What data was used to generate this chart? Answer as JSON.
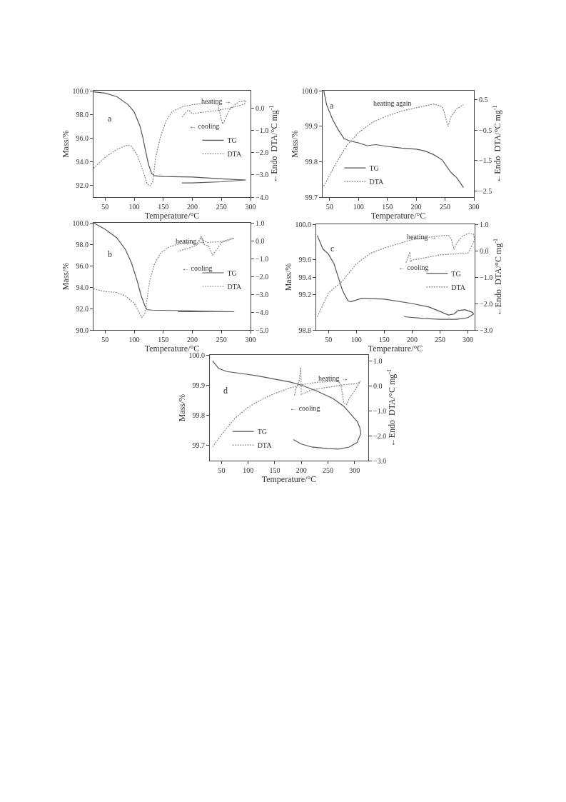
{
  "chart_data": [
    {
      "type": "line",
      "xlabel": "Temperature/°C",
      "ylabel": "Mass/%",
      "y2label": "←Endo  DTA/°C mg$^{-1}$",
      "legend": "right",
      "xlim": [
        30,
        300
      ],
      "xticks": [
        50,
        100,
        150,
        200,
        250,
        300
      ],
      "ylim": [
        91.0,
        100.0
      ],
      "yticks": [
        {
          "value": 92,
          "label": "92.0"
        },
        {
          "value": 94,
          "label": "94.0"
        },
        {
          "value": 96,
          "label": "96.0"
        },
        {
          "value": 98,
          "label": "98.0"
        },
        {
          "value": 100,
          "label": "100.0"
        }
      ],
      "y2lim": [
        -4.0,
        0.8
      ],
      "y2ticks": [
        {
          "value": -4,
          "label": "−4.0"
        },
        {
          "value": -3,
          "label": "−3.0"
        },
        {
          "value": -2,
          "label": "−2.0"
        },
        {
          "value": -1,
          "label": "−1.0"
        },
        {
          "value": 0,
          "label": "0.0"
        }
      ],
      "annotations": [
        "a",
        "heating →",
        "← cooling"
      ],
      "series": [
        {
          "name": "TG",
          "color": "#555555",
          "line_style": "solid",
          "x": [
            30,
            50,
            70,
            90,
            100,
            110,
            115,
            120,
            125,
            130,
            135,
            150,
            200,
            250,
            292,
            250,
            200,
            182
          ],
          "values": [
            99.9,
            99.8,
            99.5,
            98.8,
            98.2,
            97.0,
            96.0,
            94.8,
            93.7,
            93.0,
            92.8,
            92.75,
            92.7,
            92.55,
            92.45,
            92.3,
            92.2,
            92.2
          ]
        },
        {
          "name": "DTA",
          "color": "#888888",
          "line_style": "dotted",
          "axis": "y2",
          "x": [
            30,
            50,
            70,
            88,
            95,
            105,
            115,
            122,
            127,
            132,
            137,
            145,
            155,
            165,
            185,
            210,
            230,
            244,
            248,
            252,
            256,
            265,
            280,
            292,
            290,
            270,
            240,
            210,
            200,
            195,
            192,
            185,
            182
          ],
          "values": [
            -2.7,
            -2.2,
            -1.85,
            -1.65,
            -1.7,
            -2.1,
            -2.8,
            -3.4,
            -3.5,
            -3.3,
            -2.2,
            -1.3,
            -0.55,
            -0.15,
            0.1,
            0.2,
            0.25,
            0.2,
            -0.3,
            -0.7,
            -0.5,
            0.0,
            0.3,
            0.35,
            0.2,
            0.05,
            -0.1,
            -0.2,
            -0.25,
            -0.1,
            -0.1,
            -0.3,
            -0.4
          ]
        }
      ]
    },
    {
      "type": "line",
      "xlabel": "Temperature/°C",
      "ylabel": "Mass/%",
      "y2label": "←Endo  DTA/°C mg$^{-1}$",
      "legend": "bottom left",
      "xlim": [
        38,
        300
      ],
      "xticks": [
        50,
        100,
        150,
        200,
        250,
        300
      ],
      "ylim": [
        99.7,
        100.0
      ],
      "yticks": [
        {
          "value": 99.7,
          "label": "99.7"
        },
        {
          "value": 99.8,
          "label": "99.8"
        },
        {
          "value": 99.9,
          "label": "99.9"
        },
        {
          "value": 100.0,
          "label": "100.0"
        }
      ],
      "y2lim": [
        -2.7,
        0.8
      ],
      "y2ticks": [
        {
          "value": -2.5,
          "label": "−2.5"
        },
        {
          "value": -1.5,
          "label": "−1.5"
        },
        {
          "value": -0.5,
          "label": "−0.5"
        },
        {
          "value": 0.5,
          "label": "0.5"
        }
      ],
      "annotations": [
        "a",
        "heating again"
      ],
      "series": [
        {
          "name": "TG",
          "color": "#555555",
          "line_style": "solid",
          "x": [
            40,
            45,
            55,
            65,
            75,
            85,
            100,
            115,
            130,
            150,
            175,
            200,
            215,
            230,
            245,
            260,
            270,
            282
          ],
          "values": [
            100.0,
            99.96,
            99.92,
            99.89,
            99.865,
            99.858,
            99.853,
            99.845,
            99.848,
            99.843,
            99.838,
            99.835,
            99.83,
            99.82,
            99.805,
            99.77,
            99.755,
            99.727
          ]
        },
        {
          "name": "DTA",
          "color": "#888888",
          "line_style": "dotted",
          "axis": "y2",
          "x": [
            40,
            60,
            80,
            100,
            125,
            150,
            175,
            200,
            230,
            245,
            250,
            255,
            260,
            270,
            282
          ],
          "values": [
            -2.34,
            -1.63,
            -1.0,
            -0.58,
            -0.23,
            -0.03,
            0.13,
            0.24,
            0.36,
            0.28,
            0.0,
            -0.38,
            -0.07,
            0.2,
            0.34
          ]
        }
      ]
    },
    {
      "type": "line",
      "xlabel": "Temperature/°C",
      "ylabel": "Mass/%",
      "legend": "right",
      "xlim": [
        30,
        300
      ],
      "xticks": [
        50,
        100,
        150,
        200,
        250,
        300
      ],
      "ylim": [
        90.0,
        100.0
      ],
      "yticks": [
        {
          "value": 90,
          "label": "90.0"
        },
        {
          "value": 92,
          "label": "92.0"
        },
        {
          "value": 94,
          "label": "94.0"
        },
        {
          "value": 96,
          "label": "96.0"
        },
        {
          "value": 98,
          "label": "98.0"
        },
        {
          "value": 100,
          "label": "100.0"
        }
      ],
      "y2lim": [
        -5.0,
        1.0
      ],
      "y2ticks": [
        {
          "value": -5,
          "label": "−5.0"
        },
        {
          "value": -4,
          "label": "−4.0"
        },
        {
          "value": -3,
          "label": "−3.0"
        },
        {
          "value": -2,
          "label": "−2.0"
        },
        {
          "value": -1,
          "label": "−1.0"
        },
        {
          "value": 0,
          "label": "0.0"
        },
        {
          "value": 1,
          "label": "1.0"
        }
      ],
      "annotations": [
        "b",
        "heating →",
        "← cooling"
      ],
      "series": [
        {
          "name": "TG",
          "color": "#555555",
          "line_style": "solid",
          "x": [
            30,
            50,
            70,
            85,
            95,
            105,
            112,
            118,
            122,
            130,
            180,
            230,
            272,
            230,
            175
          ],
          "values": [
            100.0,
            99.4,
            98.6,
            97.5,
            96.3,
            94.6,
            93.2,
            92.3,
            91.9,
            91.85,
            91.8,
            91.75,
            91.7,
            91.72,
            91.7
          ]
        },
        {
          "name": "DTA",
          "color": "#888888",
          "line_style": "dotted",
          "axis": "y2",
          "x": [
            30,
            50,
            70,
            85,
            100,
            108,
            113,
            118,
            122,
            127,
            135,
            145,
            160,
            180,
            200,
            208,
            215,
            220,
            228,
            235,
            242,
            250,
            260,
            272,
            250,
            225,
            218,
            215,
            210,
            200,
            175
          ],
          "values": [
            -2.7,
            -2.85,
            -2.9,
            -3.1,
            -3.5,
            -4.0,
            -4.3,
            -4.1,
            -3.3,
            -2.2,
            -1.3,
            -0.7,
            -0.35,
            -0.15,
            -0.1,
            -0.15,
            0.2,
            -0.2,
            -0.3,
            -0.8,
            -0.5,
            -0.1,
            0.0,
            0.15,
            -0.05,
            -0.1,
            0.05,
            0.25,
            -0.2,
            -0.35,
            -0.6
          ]
        }
      ]
    },
    {
      "type": "line",
      "xlabel": "Temperature/°C",
      "ylabel": "Mass/%",
      "y2label": "←Endo  DTA/°C mg$^{-1}$",
      "legend": "right",
      "xlim": [
        28,
        312
      ],
      "xticks": [
        50,
        100,
        150,
        200,
        250,
        300
      ],
      "ylim": [
        98.8,
        100.0
      ],
      "yticks": [
        {
          "value": 98.8,
          "label": "98.8"
        },
        {
          "value": 99.2,
          "label": "99.2"
        },
        {
          "value": 99.4,
          "label": "99.4"
        },
        {
          "value": 99.6,
          "label": "99.6"
        },
        {
          "value": 100.0,
          "label": "100.0"
        }
      ],
      "y2lim": [
        -3.0,
        1.0
      ],
      "y2ticks": [
        {
          "value": -3,
          "label": "−3.0"
        },
        {
          "value": -2,
          "label": "−2.0"
        },
        {
          "value": -1,
          "label": "−1.0"
        },
        {
          "value": 0,
          "label": "0.0"
        },
        {
          "value": 1,
          "label": "1.0"
        }
      ],
      "annotations": [
        "c",
        "heating →",
        "← cooling"
      ],
      "series": [
        {
          "name": "TG",
          "color": "#555555",
          "line_style": "solid",
          "x": [
            30,
            40,
            50,
            60,
            70,
            75,
            85,
            90,
            100,
            110,
            150,
            200,
            230,
            250,
            265,
            275,
            282,
            295,
            308,
            310,
            300,
            280,
            250,
            220,
            186
          ],
          "values": [
            99.87,
            99.72,
            99.66,
            99.55,
            99.35,
            99.25,
            99.13,
            99.12,
            99.14,
            99.16,
            99.15,
            99.1,
            99.06,
            99.01,
            98.97,
            98.98,
            99.02,
            99.03,
            99.0,
            98.98,
            98.94,
            98.92,
            98.92,
            98.93,
            98.95
          ]
        },
        {
          "name": "DTA",
          "color": "#888888",
          "line_style": "dotted",
          "axis": "y2",
          "x": [
            30,
            50,
            75,
            100,
            125,
            150,
            200,
            250,
            265,
            270,
            275,
            280,
            290,
            300,
            310,
            312,
            305,
            300,
            250,
            200,
            197,
            196,
            193,
            188
          ],
          "values": [
            -2.5,
            -1.6,
            -1.15,
            -0.5,
            -0.1,
            0.1,
            0.42,
            0.56,
            0.58,
            0.45,
            0.05,
            0.3,
            0.55,
            0.65,
            0.62,
            0.4,
            0.1,
            -0.09,
            -0.16,
            -0.36,
            -0.43,
            -0.05,
            -0.23,
            -0.5
          ]
        }
      ]
    },
    {
      "type": "line",
      "xlabel": "Temperature/°C",
      "ylabel": "Mass/%",
      "y2label": "←Endo  DTA/°C mg$^{-1}$",
      "legend": "bottom left",
      "xlim": [
        28,
        326
      ],
      "xticks": [
        50,
        100,
        150,
        200,
        250,
        300
      ],
      "ylim": [
        99.65,
        100.0
      ],
      "yticks": [
        {
          "value": 99.7,
          "label": "99.7"
        },
        {
          "value": 99.8,
          "label": "99.8"
        },
        {
          "value": 99.9,
          "label": "99.9"
        },
        {
          "value": 100.0,
          "label": "100.0"
        }
      ],
      "y2lim": [
        -3.0,
        1.25
      ],
      "y2ticks": [
        {
          "value": -3,
          "label": "−3.0"
        },
        {
          "value": -2,
          "label": "−2.0"
        },
        {
          "value": -1,
          "label": "−1.0"
        },
        {
          "value": 0,
          "label": "0.0"
        },
        {
          "value": 1,
          "label": "1.0"
        }
      ],
      "annotations": [
        "d",
        "heating →",
        "← cooling"
      ],
      "series": [
        {
          "name": "TG",
          "color": "#555555",
          "line_style": "solid",
          "x": [
            33,
            45,
            60,
            90,
            120,
            150,
            180,
            200,
            230,
            260,
            280,
            295,
            305,
            310,
            312,
            305,
            290,
            270,
            250,
            220,
            200,
            185
          ],
          "values": [
            99.98,
            99.955,
            99.945,
            99.938,
            99.93,
            99.92,
            99.91,
            99.9,
            99.88,
            99.855,
            99.83,
            99.8,
            99.78,
            99.76,
            99.74,
            99.71,
            99.695,
            99.688,
            99.69,
            99.695,
            99.705,
            99.72
          ]
        },
        {
          "name": "DTA",
          "color": "#888888",
          "line_style": "dotted",
          "axis": "y2",
          "x": [
            33,
            50,
            75,
            100,
            125,
            150,
            175,
            200,
            230,
            270,
            275,
            280,
            285,
            290,
            300,
            310,
            312,
            305,
            280,
            250,
            220,
            200,
            199,
            196,
            190,
            187
          ],
          "values": [
            -2.45,
            -1.95,
            -1.3,
            -0.85,
            -0.55,
            -0.3,
            -0.1,
            0.05,
            0.15,
            0.2,
            0.0,
            -0.7,
            -0.75,
            -0.5,
            -0.2,
            0.15,
            0.2,
            0.1,
            0.05,
            -0.05,
            -0.15,
            -0.35,
            0.75,
            0.2,
            -0.1,
            -0.4
          ]
        }
      ]
    }
  ]
}
